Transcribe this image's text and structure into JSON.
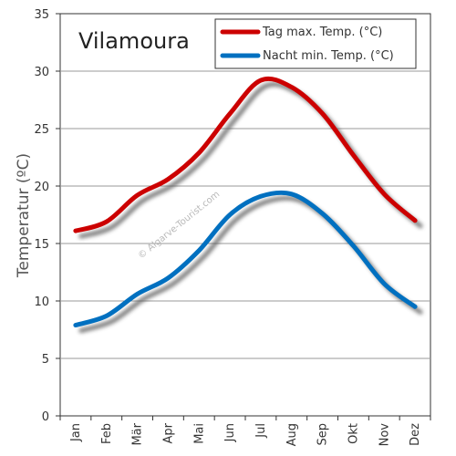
{
  "chart_data": {
    "type": "line",
    "title": "Vilamoura",
    "ylabel": "Temperatur (ºC)",
    "xlabel": "",
    "categories": [
      "Jan",
      "Feb",
      "Mär",
      "Apr",
      "Mai",
      "Jun",
      "Jul",
      "Aug",
      "Sep",
      "Okt",
      "Nov",
      "Dez"
    ],
    "ylim": [
      0,
      35
    ],
    "yticks": [
      0,
      5,
      10,
      15,
      20,
      25,
      30,
      35
    ],
    "grid": true,
    "legend_position": "top-right",
    "series": [
      {
        "name": "Tag max. Temp. (°C)",
        "color": "#cc0000",
        "values": [
          16.1,
          16.9,
          19.2,
          20.6,
          22.9,
          26.3,
          29.2,
          28.6,
          26.3,
          22.7,
          19.3,
          17.0
        ]
      },
      {
        "name": "Nacht min. Temp. (°C)",
        "color": "#0070c0",
        "values": [
          7.9,
          8.7,
          10.6,
          12.0,
          14.4,
          17.5,
          19.1,
          19.3,
          17.6,
          14.8,
          11.5,
          9.5
        ]
      }
    ],
    "watermark": "© Algarve-Tourist.com"
  }
}
